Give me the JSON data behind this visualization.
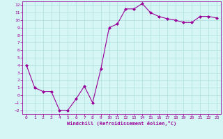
{
  "x": [
    0,
    1,
    2,
    3,
    4,
    5,
    6,
    7,
    8,
    9,
    10,
    11,
    12,
    13,
    14,
    15,
    16,
    17,
    18,
    19,
    20,
    21,
    22,
    23
  ],
  "y": [
    4.0,
    1.0,
    0.5,
    0.5,
    -2.0,
    -2.0,
    -0.5,
    1.2,
    -1.0,
    3.5,
    9.0,
    9.5,
    11.5,
    11.5,
    12.2,
    11.0,
    10.5,
    10.2,
    10.0,
    9.7,
    9.7,
    10.5,
    10.5,
    10.3
  ],
  "line_color": "#990099",
  "marker": "D",
  "marker_size": 2.0,
  "bg_color": "#d6f5f5",
  "grid_color": "#b0dede",
  "xlabel": "Windchill (Refroidissement éolien,°C)",
  "xlabel_color": "#990099",
  "tick_color": "#990099",
  "xlim": [
    -0.5,
    23.5
  ],
  "ylim": [
    -2.5,
    12.5
  ],
  "yticks": [
    -2,
    -1,
    0,
    1,
    2,
    3,
    4,
    5,
    6,
    7,
    8,
    9,
    10,
    11,
    12
  ],
  "xticks": [
    0,
    1,
    2,
    3,
    4,
    5,
    6,
    7,
    8,
    9,
    10,
    11,
    12,
    13,
    14,
    15,
    16,
    17,
    18,
    19,
    20,
    21,
    22,
    23
  ]
}
